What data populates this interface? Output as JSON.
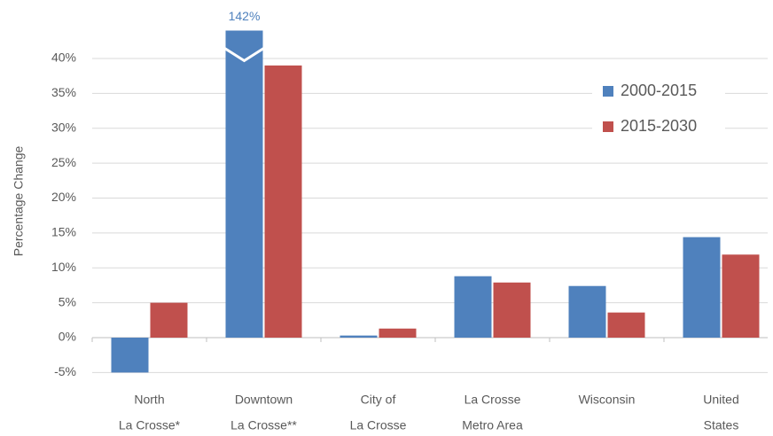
{
  "chart_data": {
    "type": "bar",
    "y_label": "Percentage Change",
    "categories": [
      [
        "North",
        "La Crosse*"
      ],
      [
        "Downtown",
        "La Crosse**"
      ],
      [
        "City of",
        "La Crosse"
      ],
      [
        "La Crosse",
        "Metro Area"
      ],
      [
        "Wisconsin"
      ],
      [
        "United",
        "States"
      ]
    ],
    "series": [
      {
        "name": "2000-2015",
        "color": "#4f81bd",
        "values": [
          -5,
          142,
          0.3,
          8.8,
          7.4,
          14.4
        ],
        "value_labels": [
          null,
          "142%",
          null,
          null,
          null,
          null
        ]
      },
      {
        "name": "2015-2030",
        "color": "#c0504d",
        "values": [
          5,
          39,
          1.3,
          7.9,
          3.6,
          11.9
        ]
      }
    ],
    "ylim": [
      -5,
      44
    ],
    "yticks": [
      {
        "value": -5,
        "label": "-5%"
      },
      {
        "value": 0,
        "label": "0%"
      },
      {
        "value": 5,
        "label": "5%"
      },
      {
        "value": 10,
        "label": "10%"
      },
      {
        "value": 15,
        "label": "15%"
      },
      {
        "value": 20,
        "label": "20%"
      },
      {
        "value": 25,
        "label": "25%"
      },
      {
        "value": 30,
        "label": "30%"
      },
      {
        "value": 35,
        "label": "35%"
      },
      {
        "value": 40,
        "label": "40%"
      }
    ],
    "grid": true,
    "legend": "upper right"
  }
}
